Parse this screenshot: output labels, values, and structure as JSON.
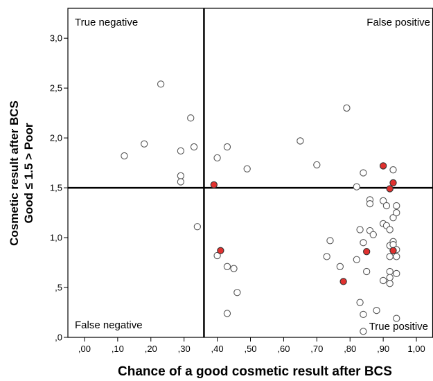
{
  "chart_data": {
    "type": "scatter",
    "xlabel": "Chance of a good cosmetic result after BCS",
    "ylabel_lines": [
      "Cosmetic result after BCS",
      "Good ≤ 1.5 > Poor"
    ],
    "xlim": [
      -0.05,
      1.05
    ],
    "ylim": [
      0,
      3.3
    ],
    "x_ticks": [
      0.0,
      0.1,
      0.2,
      0.3,
      0.4,
      0.5,
      0.6,
      0.7,
      0.8,
      0.9,
      1.0
    ],
    "x_tick_labels": [
      ",00",
      ",10",
      ",20",
      ",30",
      ",40",
      ",50",
      ",60",
      ",70",
      ",80",
      ",90",
      "1,00"
    ],
    "y_ticks": [
      0.0,
      0.5,
      1.0,
      1.5,
      2.0,
      2.5,
      3.0
    ],
    "y_tick_labels": [
      ",0",
      ",5",
      "1,0",
      "1,5",
      "2,0",
      "2,5",
      "3,0"
    ],
    "reference_lines": {
      "x": 0.36,
      "y": 1.5
    },
    "quadrant_labels": {
      "top_left": "True negative",
      "top_right": "False positive",
      "bottom_left": "False negative",
      "bottom_right": "True positive"
    },
    "grid": false,
    "series": [
      {
        "marker": "open-circle",
        "color": "#ffffff",
        "edge_color": "#555555",
        "points": [
          [
            0.12,
            1.82
          ],
          [
            0.18,
            1.94
          ],
          [
            0.23,
            2.54
          ],
          [
            0.29,
            1.87
          ],
          [
            0.29,
            1.62
          ],
          [
            0.29,
            1.56
          ],
          [
            0.32,
            2.2
          ],
          [
            0.33,
            1.91
          ],
          [
            0.34,
            1.11
          ],
          [
            0.4,
            1.8
          ],
          [
            0.43,
            1.91
          ],
          [
            0.49,
            1.69
          ],
          [
            0.65,
            1.97
          ],
          [
            0.7,
            1.73
          ],
          [
            0.79,
            2.3
          ],
          [
            0.82,
            1.51
          ],
          [
            0.84,
            1.65
          ],
          [
            0.93,
            1.68
          ],
          [
            0.4,
            0.82
          ],
          [
            0.43,
            0.71
          ],
          [
            0.45,
            0.69
          ],
          [
            0.46,
            0.45
          ],
          [
            0.43,
            0.24
          ],
          [
            0.73,
            0.81
          ],
          [
            0.74,
            0.97
          ],
          [
            0.77,
            0.71
          ],
          [
            0.82,
            0.78
          ],
          [
            0.83,
            1.08
          ],
          [
            0.83,
            0.35
          ],
          [
            0.84,
            0.95
          ],
          [
            0.84,
            0.23
          ],
          [
            0.84,
            0.06
          ],
          [
            0.85,
            0.66
          ],
          [
            0.86,
            1.07
          ],
          [
            0.86,
            1.38
          ],
          [
            0.86,
            1.34
          ],
          [
            0.87,
            1.03
          ],
          [
            0.88,
            0.27
          ],
          [
            0.9,
            1.37
          ],
          [
            0.9,
            1.14
          ],
          [
            0.9,
            0.57
          ],
          [
            0.91,
            1.32
          ],
          [
            0.91,
            1.12
          ],
          [
            0.92,
            1.08
          ],
          [
            0.92,
            0.92
          ],
          [
            0.92,
            0.81
          ],
          [
            0.92,
            0.66
          ],
          [
            0.92,
            0.6
          ],
          [
            0.92,
            0.54
          ],
          [
            0.93,
            1.2
          ],
          [
            0.93,
            0.96
          ],
          [
            0.93,
            0.93
          ],
          [
            0.94,
            1.32
          ],
          [
            0.94,
            1.25
          ],
          [
            0.94,
            0.88
          ],
          [
            0.94,
            0.81
          ],
          [
            0.94,
            0.64
          ],
          [
            0.94,
            0.19
          ]
        ]
      },
      {
        "marker": "filled-circle",
        "color": "#e0312f",
        "edge_color": "#333333",
        "points": [
          [
            0.39,
            1.53
          ],
          [
            0.41,
            0.87
          ],
          [
            0.78,
            0.56
          ],
          [
            0.85,
            0.86
          ],
          [
            0.9,
            1.72
          ],
          [
            0.92,
            1.49
          ],
          [
            0.93,
            1.55
          ],
          [
            0.93,
            0.87
          ]
        ]
      }
    ]
  }
}
